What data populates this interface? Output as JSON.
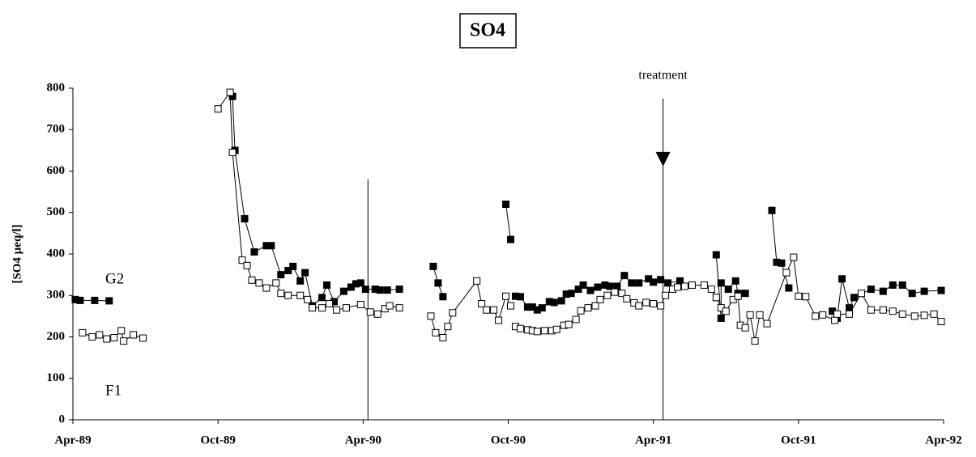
{
  "chart_data": {
    "type": "line",
    "title": "SO4",
    "y_label": "[SO4 µeq/l]",
    "xlim": [
      0,
      36
    ],
    "ylim": [
      0,
      800
    ],
    "xticks": [
      {
        "value": 0,
        "label": "Apr-89"
      },
      {
        "value": 6,
        "label": "Oct-89"
      },
      {
        "value": 12,
        "label": "Apr-90"
      },
      {
        "value": 18,
        "label": "Oct-90"
      },
      {
        "value": 24,
        "label": "Apr-91"
      },
      {
        "value": 30,
        "label": "Oct-91"
      },
      {
        "value": 36,
        "label": "Apr-92"
      }
    ],
    "yticks": [
      0,
      100,
      200,
      300,
      400,
      500,
      600,
      700,
      800
    ],
    "reference_lines": [
      {
        "x": 12.2,
        "top": 580
      },
      {
        "x": 24.4,
        "top": 775
      }
    ],
    "annotations": [
      {
        "text": "treatment",
        "x": 24.4,
        "y": 775
      }
    ],
    "series": [
      {
        "name": "G2",
        "marker": "filled",
        "color": "#000000",
        "x": [
          0.1,
          0.3,
          0.9,
          1.5,
          null,
          6.6,
          6.7,
          7.1,
          7.5,
          8.0,
          8.2,
          8.6,
          8.9,
          9.1,
          9.4,
          9.6,
          9.9,
          10.3,
          10.5,
          10.8,
          11.2,
          11.5,
          11.7,
          11.9,
          12.1,
          12.5,
          12.7,
          13.0,
          13.5,
          null,
          14.9,
          15.1,
          15.3,
          null,
          17.9,
          18.1,
          null,
          18.3,
          18.5,
          18.8,
          19.0,
          19.2,
          19.4,
          19.7,
          19.9,
          20.2,
          20.4,
          20.6,
          20.9,
          21.1,
          21.4,
          21.7,
          22.0,
          22.2,
          22.5,
          22.8,
          23.1,
          23.4,
          23.8,
          24.0,
          24.3,
          24.6,
          25.1,
          null,
          26.6,
          26.8,
          26.8,
          27.1,
          27.4,
          27.5,
          27.8,
          null,
          28.9,
          29.1,
          29.3,
          29.6,
          null,
          31.4,
          31.6,
          31.8,
          32.1,
          32.3,
          33.0,
          33.5,
          33.9,
          34.3,
          34.7,
          35.2,
          35.9
        ],
        "values": [
          290,
          288,
          288,
          287,
          null,
          780,
          650,
          485,
          405,
          420,
          420,
          350,
          360,
          370,
          335,
          355,
          275,
          295,
          325,
          285,
          310,
          320,
          328,
          330,
          315,
          315,
          313,
          313,
          315,
          null,
          370,
          330,
          297,
          null,
          520,
          435,
          null,
          298,
          297,
          272,
          272,
          265,
          270,
          285,
          283,
          287,
          303,
          305,
          315,
          325,
          312,
          320,
          325,
          322,
          322,
          348,
          330,
          330,
          340,
          332,
          338,
          330,
          335,
          null,
          398,
          245,
          330,
          315,
          335,
          305,
          305,
          null,
          505,
          380,
          378,
          318,
          null,
          262,
          245,
          340,
          270,
          295,
          315,
          310,
          325,
          325,
          305,
          310,
          312
        ]
      },
      {
        "name": "F1",
        "marker": "open",
        "color": "#000000",
        "x": [
          0.4,
          0.8,
          1.1,
          1.4,
          1.7,
          2.0,
          2.1,
          2.5,
          2.9,
          null,
          6.0,
          6.5,
          6.6,
          7.0,
          7.2,
          7.4,
          7.7,
          8.0,
          8.4,
          8.6,
          8.9,
          9.4,
          9.7,
          9.9,
          10.3,
          10.6,
          10.9,
          11.3,
          11.9,
          12.3,
          12.6,
          12.9,
          13.1,
          13.5,
          null,
          14.8,
          15.0,
          15.3,
          15.5,
          15.7,
          16.7,
          16.9,
          17.1,
          17.4,
          17.6,
          17.9,
          18.1,
          null,
          18.3,
          18.5,
          18.8,
          19.0,
          19.2,
          19.5,
          19.8,
          20.0,
          20.3,
          20.5,
          20.8,
          21.0,
          21.3,
          21.6,
          21.8,
          22.1,
          22.4,
          22.7,
          22.9,
          23.2,
          23.4,
          23.7,
          24.0,
          24.3,
          24.5,
          24.8,
          25.0,
          25.3,
          25.6,
          26.1,
          26.4,
          26.6,
          26.8,
          27.0,
          27.3,
          27.5,
          27.6,
          27.8,
          28.0,
          28.2,
          28.4,
          28.7,
          29.5,
          29.8,
          30.0,
          30.3,
          30.7,
          31.0,
          31.5,
          31.6,
          32.1,
          32.6,
          33.0,
          33.5,
          33.9,
          34.3,
          34.8,
          35.2,
          35.6,
          35.9
        ],
        "values": [
          210,
          200,
          205,
          195,
          198,
          215,
          190,
          205,
          197,
          null,
          750,
          790,
          645,
          385,
          372,
          337,
          330,
          318,
          330,
          305,
          300,
          300,
          290,
          270,
          270,
          280,
          265,
          270,
          278,
          260,
          255,
          268,
          275,
          270,
          null,
          250,
          210,
          198,
          225,
          258,
          335,
          280,
          265,
          265,
          240,
          298,
          275,
          null,
          225,
          220,
          217,
          215,
          213,
          215,
          215,
          218,
          228,
          230,
          242,
          263,
          270,
          275,
          290,
          300,
          308,
          305,
          292,
          282,
          275,
          283,
          280,
          275,
          300,
          315,
          320,
          322,
          325,
          325,
          315,
          295,
          270,
          262,
          290,
          298,
          228,
          222,
          253,
          190,
          253,
          232,
          355,
          392,
          298,
          297,
          250,
          253,
          240,
          255,
          255,
          305,
          265,
          265,
          262,
          255,
          250,
          252,
          255,
          237
        ]
      }
    ]
  }
}
